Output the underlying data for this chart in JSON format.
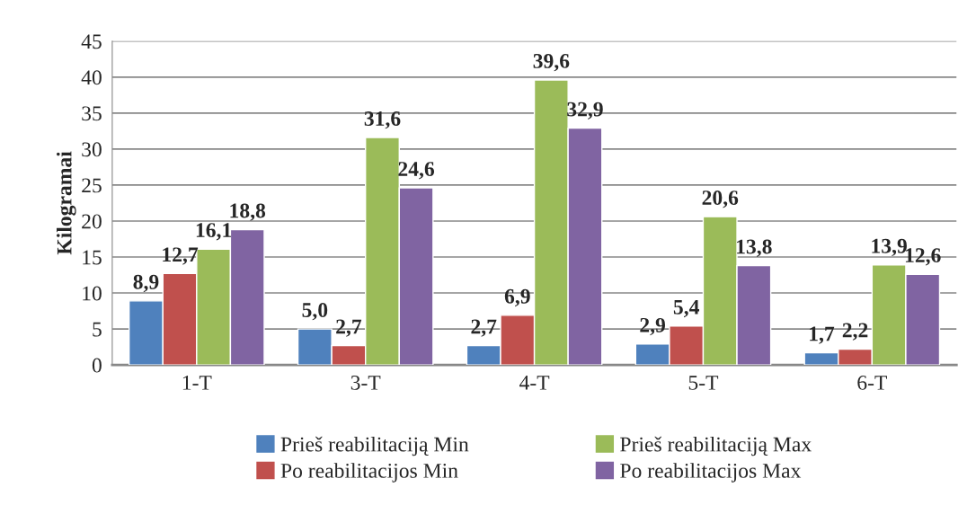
{
  "chart_data": {
    "type": "bar",
    "ylabel": "Kilogramai",
    "categories": [
      "1-T",
      "3-T",
      "4-T",
      "5-T",
      "6-T"
    ],
    "series": [
      {
        "name": "Prieš reabilitaciją Min",
        "color": "#4f81bd",
        "values": [
          8.9,
          5.0,
          2.7,
          2.9,
          1.7
        ],
        "value_labels": [
          "8,9",
          "5,0",
          "2,7",
          "2,9",
          "1,7"
        ]
      },
      {
        "name": "Po reabilitacijos Min",
        "color": "#c0504d",
        "values": [
          12.7,
          2.7,
          6.9,
          5.4,
          2.2
        ],
        "value_labels": [
          "12,7",
          "2,7",
          "6,9",
          "5,4",
          "2,2"
        ]
      },
      {
        "name": "Prieš reabilitaciją Max",
        "color": "#9bbb59",
        "values": [
          16.1,
          31.6,
          39.6,
          20.6,
          13.9
        ],
        "value_labels": [
          "16,1",
          "31,6",
          "39,6",
          "20,6",
          "13,9"
        ]
      },
      {
        "name": "Po reabilitacijos Max",
        "color": "#8064a2",
        "values": [
          18.8,
          24.6,
          32.9,
          13.8,
          12.6
        ],
        "value_labels": [
          "18,8",
          "24,6",
          "32,9",
          "13,8",
          "12,6"
        ]
      }
    ],
    "ylim": [
      0,
      45
    ],
    "yticks": [
      0,
      5,
      10,
      15,
      20,
      25,
      30,
      35,
      40,
      45
    ],
    "grid": "y",
    "legend": "bottom"
  }
}
